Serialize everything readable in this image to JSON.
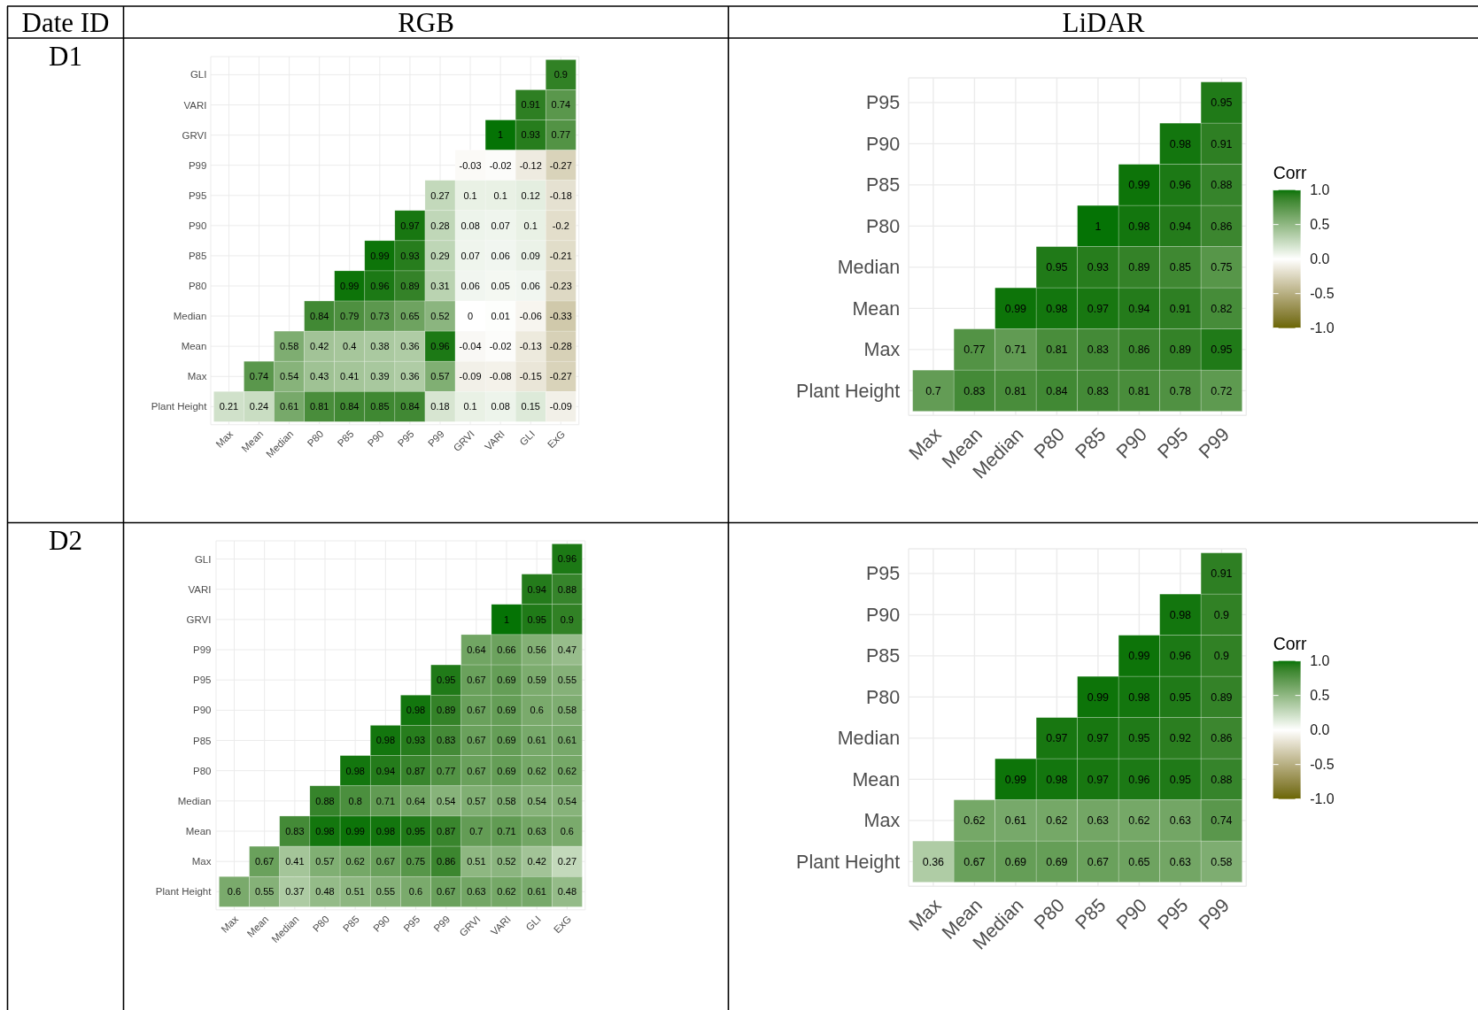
{
  "chart_data": [
    {
      "type": "other",
      "annotations": [
        "Date ID",
        "RGB",
        "LiDAR",
        "D1",
        "D2"
      ]
    },
    {
      "type": "heatmap",
      "categories": [
        "Max",
        "Mean",
        "Median",
        "P80",
        "P85",
        "P90",
        "P95",
        "P99",
        "GRVI",
        "VARI",
        "GLI",
        "ExG"
      ],
      "y_categories": [
        "GLI",
        "VARI",
        "GRVI",
        "P99",
        "P95",
        "P90",
        "P85",
        "P80",
        "Median",
        "Mean",
        "Max",
        "Plant Height"
      ],
      "cells": [
        [
          null,
          null,
          null,
          null,
          null,
          null,
          null,
          null,
          null,
          null,
          null,
          0.9
        ],
        [
          null,
          null,
          null,
          null,
          null,
          null,
          null,
          null,
          null,
          null,
          0.91,
          0.74
        ],
        [
          null,
          null,
          null,
          null,
          null,
          null,
          null,
          null,
          null,
          1,
          0.93,
          0.77
        ],
        [
          null,
          null,
          null,
          null,
          null,
          null,
          null,
          null,
          -0.03,
          -0.02,
          -0.12,
          -0.27
        ],
        [
          null,
          null,
          null,
          null,
          null,
          null,
          null,
          0.27,
          0.1,
          0.1,
          0.12,
          -0.18
        ],
        [
          null,
          null,
          null,
          null,
          null,
          null,
          0.97,
          0.28,
          0.08,
          0.07,
          0.1,
          -0.2
        ],
        [
          null,
          null,
          null,
          null,
          null,
          0.99,
          0.93,
          0.29,
          0.07,
          0.06,
          0.09,
          -0.21
        ],
        [
          null,
          null,
          null,
          null,
          0.99,
          0.96,
          0.89,
          0.31,
          0.06,
          0.05,
          0.06,
          -0.23
        ],
        [
          null,
          null,
          null,
          0.84,
          0.79,
          0.73,
          0.65,
          0.52,
          0,
          0.01,
          -0.06,
          -0.33
        ],
        [
          null,
          null,
          0.58,
          0.42,
          0.4,
          0.38,
          0.36,
          0.96,
          -0.04,
          -0.02,
          -0.13,
          -0.28
        ],
        [
          null,
          0.74,
          0.54,
          0.43,
          0.41,
          0.39,
          0.36,
          0.57,
          -0.09,
          -0.08,
          -0.15,
          -0.27
        ],
        [
          0.21,
          0.24,
          0.61,
          0.81,
          0.84,
          0.85,
          0.84,
          0.18,
          0.1,
          0.08,
          0.15,
          -0.09
        ]
      ],
      "data_labels": true,
      "grid": true
    },
    {
      "type": "heatmap",
      "categories": [
        "Max",
        "Mean",
        "Median",
        "P80",
        "P85",
        "P90",
        "P95",
        "P99"
      ],
      "y_categories": [
        "P95",
        "P90",
        "P85",
        "P80",
        "Median",
        "Mean",
        "Max",
        "Plant Height"
      ],
      "cells": [
        [
          null,
          null,
          null,
          null,
          null,
          null,
          null,
          0.95
        ],
        [
          null,
          null,
          null,
          null,
          null,
          null,
          0.98,
          0.91
        ],
        [
          null,
          null,
          null,
          null,
          null,
          0.99,
          0.96,
          0.88
        ],
        [
          null,
          null,
          null,
          null,
          1,
          0.98,
          0.94,
          0.86
        ],
        [
          null,
          null,
          null,
          0.95,
          0.93,
          0.89,
          0.85,
          0.75
        ],
        [
          null,
          null,
          0.99,
          0.98,
          0.97,
          0.94,
          0.91,
          0.82
        ],
        [
          null,
          0.77,
          0.71,
          0.81,
          0.83,
          0.86,
          0.89,
          0.95
        ],
        [
          0.7,
          0.83,
          0.81,
          0.84,
          0.83,
          0.81,
          0.78,
          0.72
        ]
      ],
      "clim": [
        -1,
        1
      ],
      "clabel": "Corr",
      "cticks": [
        {
          "value": -1,
          "label": "-1.0"
        },
        {
          "value": -0.5,
          "label": "-0.5"
        },
        {
          "value": 0,
          "label": "0.0"
        },
        {
          "value": 0.5,
          "label": "0.5"
        },
        {
          "value": 1,
          "label": "1.0"
        }
      ],
      "data_labels": true,
      "grid": true
    },
    {
      "type": "heatmap",
      "categories": [
        "Max",
        "Mean",
        "Median",
        "P80",
        "P85",
        "P90",
        "P95",
        "P99",
        "GRVI",
        "VARI",
        "GLI",
        "ExG"
      ],
      "y_categories": [
        "GLI",
        "VARI",
        "GRVI",
        "P99",
        "P95",
        "P90",
        "P85",
        "P80",
        "Median",
        "Mean",
        "Max",
        "Plant Height"
      ],
      "cells": [
        [
          null,
          null,
          null,
          null,
          null,
          null,
          null,
          null,
          null,
          null,
          null,
          0.96
        ],
        [
          null,
          null,
          null,
          null,
          null,
          null,
          null,
          null,
          null,
          null,
          0.94,
          0.88
        ],
        [
          null,
          null,
          null,
          null,
          null,
          null,
          null,
          null,
          null,
          1,
          0.95,
          0.9
        ],
        [
          null,
          null,
          null,
          null,
          null,
          null,
          null,
          null,
          0.64,
          0.66,
          0.56,
          0.47
        ],
        [
          null,
          null,
          null,
          null,
          null,
          null,
          null,
          0.95,
          0.67,
          0.69,
          0.59,
          0.55
        ],
        [
          null,
          null,
          null,
          null,
          null,
          null,
          0.98,
          0.89,
          0.67,
          0.69,
          0.6,
          0.58
        ],
        [
          null,
          null,
          null,
          null,
          null,
          0.98,
          0.93,
          0.83,
          0.67,
          0.69,
          0.61,
          0.61
        ],
        [
          null,
          null,
          null,
          null,
          0.98,
          0.94,
          0.87,
          0.77,
          0.67,
          0.69,
          0.62,
          0.62
        ],
        [
          null,
          null,
          null,
          0.88,
          0.8,
          0.71,
          0.64,
          0.54,
          0.57,
          0.58,
          0.54,
          0.54
        ],
        [
          null,
          null,
          0.83,
          0.98,
          0.99,
          0.98,
          0.95,
          0.87,
          0.7,
          0.71,
          0.63,
          0.6
        ],
        [
          null,
          0.67,
          0.41,
          0.57,
          0.62,
          0.67,
          0.75,
          0.86,
          0.51,
          0.52,
          0.42,
          0.27
        ],
        [
          0.6,
          0.55,
          0.37,
          0.48,
          0.51,
          0.55,
          0.6,
          0.67,
          0.63,
          0.62,
          0.61,
          0.48
        ]
      ],
      "data_labels": true,
      "grid": true
    },
    {
      "type": "heatmap",
      "categories": [
        "Max",
        "Mean",
        "Median",
        "P80",
        "P85",
        "P90",
        "P95",
        "P99"
      ],
      "y_categories": [
        "P95",
        "P90",
        "P85",
        "P80",
        "Median",
        "Mean",
        "Max",
        "Plant Height"
      ],
      "cells": [
        [
          null,
          null,
          null,
          null,
          null,
          null,
          null,
          0.91
        ],
        [
          null,
          null,
          null,
          null,
          null,
          null,
          0.98,
          0.9
        ],
        [
          null,
          null,
          null,
          null,
          null,
          0.99,
          0.96,
          0.9
        ],
        [
          null,
          null,
          null,
          null,
          0.99,
          0.98,
          0.95,
          0.89
        ],
        [
          null,
          null,
          null,
          0.97,
          0.97,
          0.95,
          0.92,
          0.86
        ],
        [
          null,
          null,
          0.99,
          0.98,
          0.97,
          0.96,
          0.95,
          0.88
        ],
        [
          null,
          0.62,
          0.61,
          0.62,
          0.63,
          0.62,
          0.63,
          0.74
        ],
        [
          0.36,
          0.67,
          0.69,
          0.69,
          0.67,
          0.65,
          0.63,
          0.58
        ]
      ],
      "clim": [
        -1,
        1
      ],
      "clabel": "Corr",
      "cticks": [
        {
          "value": -1,
          "label": "-1.0"
        },
        {
          "value": -0.5,
          "label": "-0.5"
        },
        {
          "value": 0,
          "label": "0.0"
        },
        {
          "value": 0.5,
          "label": "0.5"
        },
        {
          "value": 1,
          "label": "1.0"
        }
      ],
      "data_labels": true,
      "grid": true
    }
  ]
}
